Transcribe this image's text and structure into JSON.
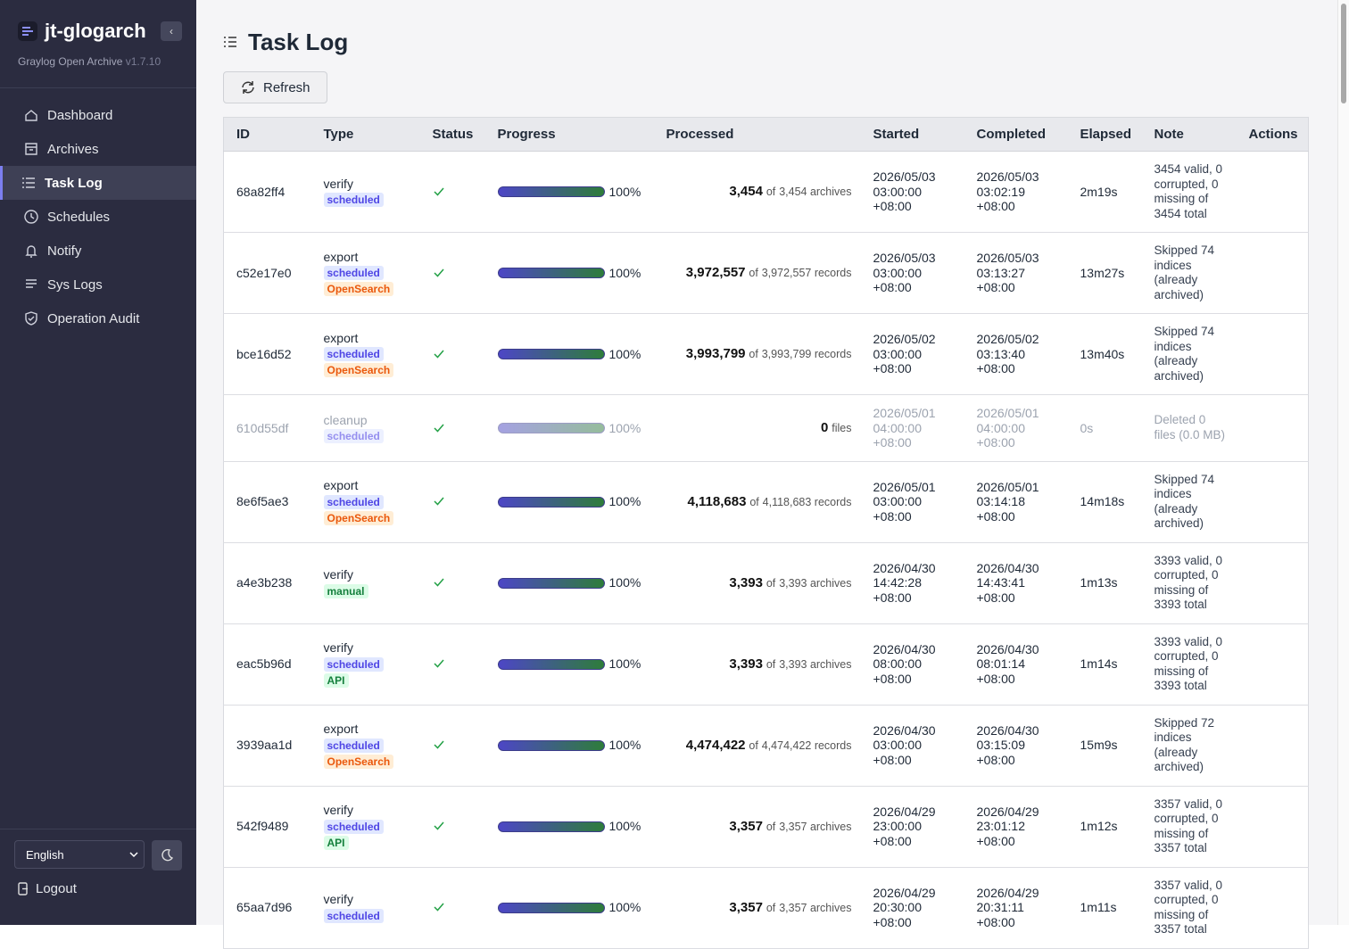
{
  "sidebar": {
    "brand": "jt-glogarch",
    "subtitle": "Graylog Open Archive",
    "version": "v1.7.10",
    "nav": [
      "Dashboard",
      "Archives",
      "Task Log",
      "Schedules",
      "Notify",
      "Sys Logs",
      "Operation Audit"
    ],
    "language": "English",
    "logout": "Logout"
  },
  "header": {
    "title": "Task Log",
    "refresh": "Refresh"
  },
  "table": {
    "columns": [
      "ID",
      "Type",
      "Status",
      "Progress",
      "Processed",
      "Started",
      "Completed",
      "Elapsed",
      "Note",
      "Actions"
    ],
    "rows": [
      {
        "id": "68a82ff4",
        "type": "verify",
        "tags": [
          {
            "text": "scheduled",
            "style": "blue"
          }
        ],
        "progress": "100%",
        "processed": "3,454",
        "of": "of",
        "total": "3,454 archives",
        "started": "2026/05/03 03:00:00 +08:00",
        "completed": "2026/05/03 03:02:19 +08:00",
        "elapsed": "2m19s",
        "note": "3454 valid, 0 corrupted, 0 missing of 3454 total"
      },
      {
        "id": "c52e17e0",
        "type": "export",
        "tags": [
          {
            "text": "scheduled",
            "style": "blue"
          },
          {
            "text": "OpenSearch",
            "style": "orange"
          }
        ],
        "progress": "100%",
        "processed": "3,972,557",
        "of": "of",
        "total": "3,972,557 records",
        "started": "2026/05/03 03:00:00 +08:00",
        "completed": "2026/05/03 03:13:27 +08:00",
        "elapsed": "13m27s",
        "note": "Skipped 74 indices (already archived)"
      },
      {
        "id": "bce16d52",
        "type": "export",
        "tags": [
          {
            "text": "scheduled",
            "style": "blue"
          },
          {
            "text": "OpenSearch",
            "style": "orange"
          }
        ],
        "progress": "100%",
        "processed": "3,993,799",
        "of": "of",
        "total": "3,993,799 records",
        "started": "2026/05/02 03:00:00 +08:00",
        "completed": "2026/05/02 03:13:40 +08:00",
        "elapsed": "13m40s",
        "note": "Skipped 74 indices (already archived)"
      },
      {
        "id": "610d55df",
        "type": "cleanup",
        "tags": [
          {
            "text": "scheduled",
            "style": "blue"
          }
        ],
        "progress": "100%",
        "processed": "0",
        "total": "files",
        "started": "2026/05/01 04:00:00 +08:00",
        "completed": "2026/05/01 04:00:00 +08:00",
        "elapsed": "0s",
        "note": "Deleted 0 files (0.0 MB)"
      },
      {
        "id": "8e6f5ae3",
        "type": "export",
        "tags": [
          {
            "text": "scheduled",
            "style": "blue"
          },
          {
            "text": "OpenSearch",
            "style": "orange"
          }
        ],
        "progress": "100%",
        "processed": "4,118,683",
        "of": "of",
        "total": "4,118,683 records",
        "started": "2026/05/01 03:00:00 +08:00",
        "completed": "2026/05/01 03:14:18 +08:00",
        "elapsed": "14m18s",
        "note": "Skipped 74 indices (already archived)"
      },
      {
        "id": "a4e3b238",
        "type": "verify",
        "tags": [
          {
            "text": "manual",
            "style": "green"
          }
        ],
        "progress": "100%",
        "processed": "3,393",
        "of": "of",
        "total": "3,393 archives",
        "started": "2026/04/30 14:42:28 +08:00",
        "completed": "2026/04/30 14:43:41 +08:00",
        "elapsed": "1m13s",
        "note": "3393 valid, 0 corrupted, 0 missing of 3393 total"
      },
      {
        "id": "eac5b96d",
        "type": "verify",
        "tags": [
          {
            "text": "scheduled",
            "style": "blue"
          },
          {
            "text": "API",
            "style": "green"
          }
        ],
        "progress": "100%",
        "processed": "3,393",
        "of": "of",
        "total": "3,393 archives",
        "started": "2026/04/30 08:00:00 +08:00",
        "completed": "2026/04/30 08:01:14 +08:00",
        "elapsed": "1m14s",
        "note": "3393 valid, 0 corrupted, 0 missing of 3393 total"
      },
      {
        "id": "3939aa1d",
        "type": "export",
        "tags": [
          {
            "text": "scheduled",
            "style": "blue"
          },
          {
            "text": "OpenSearch",
            "style": "orange"
          }
        ],
        "progress": "100%",
        "processed": "4,474,422",
        "of": "of",
        "total": "4,474,422 records",
        "started": "2026/04/30 03:00:00 +08:00",
        "completed": "2026/04/30 03:15:09 +08:00",
        "elapsed": "15m9s",
        "note": "Skipped 72 indices (already archived)"
      },
      {
        "id": "542f9489",
        "type": "verify",
        "tags": [
          {
            "text": "scheduled",
            "style": "blue"
          },
          {
            "text": "API",
            "style": "green"
          }
        ],
        "progress": "100%",
        "processed": "3,357",
        "of": "of",
        "total": "3,357 archives",
        "started": "2026/04/29 23:00:00 +08:00",
        "completed": "2026/04/29 23:01:12 +08:00",
        "elapsed": "1m12s",
        "note": "3357 valid, 0 corrupted, 0 missing of 3357 total"
      },
      {
        "id": "65aa7d96",
        "type": "verify",
        "tags": [
          {
            "text": "scheduled",
            "style": "blue"
          }
        ],
        "progress": "100%",
        "processed": "3,357",
        "of": "of",
        "total": "3,357 archives",
        "started": "2026/04/29 20:30:00 +08:00",
        "completed": "2026/04/29 20:31:11 +08:00",
        "elapsed": "1m11s",
        "note": "3357 valid, 0 corrupted, 0 missing of 3357 total"
      }
    ]
  }
}
